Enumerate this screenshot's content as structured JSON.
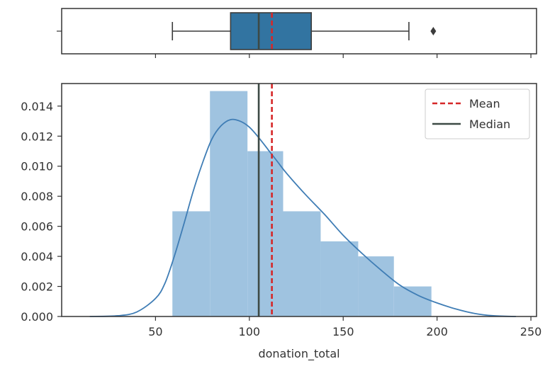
{
  "chart_data": {
    "type": "histogram+kde+boxplot",
    "xlabel": "donation_total",
    "x_ticks": [
      50,
      100,
      150,
      200,
      250
    ],
    "xlim": [
      0,
      253
    ],
    "y_ticks": [
      0.0,
      0.002,
      0.004,
      0.006,
      0.008,
      0.01,
      0.012,
      0.014
    ],
    "y_tick_labels": [
      "0.000",
      "0.002",
      "0.004",
      "0.006",
      "0.008",
      "0.010",
      "0.012",
      "0.014"
    ],
    "ylim": [
      0,
      0.0155
    ],
    "histogram": {
      "bin_edges": [
        59,
        79,
        99,
        118,
        138,
        158,
        177,
        197
      ],
      "densities": [
        0.007,
        0.015,
        0.011,
        0.007,
        0.005,
        0.004,
        0.002
      ]
    },
    "kde": {
      "x": [
        15,
        30,
        40,
        50,
        55,
        60,
        65,
        70,
        75,
        80,
        85,
        90,
        95,
        100,
        105,
        110,
        115,
        120,
        130,
        140,
        150,
        160,
        170,
        180,
        190,
        200,
        210,
        220,
        230,
        242
      ],
      "y": [
        0.0,
        5e-05,
        0.0003,
        0.0012,
        0.0022,
        0.004,
        0.0061,
        0.0083,
        0.0102,
        0.0118,
        0.0127,
        0.0131,
        0.013,
        0.0126,
        0.0119,
        0.0111,
        0.0103,
        0.0095,
        0.0081,
        0.0068,
        0.0054,
        0.0042,
        0.0031,
        0.0021,
        0.0014,
        0.0009,
        0.0005,
        0.0002,
        5e-05,
        0.0
      ]
    },
    "mean": 112,
    "median": 105,
    "boxplot": {
      "whisker_low": 59,
      "q1": 90,
      "median": 105,
      "q3": 133,
      "whisker_high": 185,
      "outliers": [
        198
      ]
    },
    "legend": {
      "placement": "top-right",
      "entries": [
        {
          "label": "Mean",
          "color": "#d62728",
          "style": "dashed"
        },
        {
          "label": "Median",
          "color": "#3d4a45",
          "style": "solid"
        }
      ]
    },
    "colors": {
      "histogram_fill": "#9fc3e0",
      "kde_line": "#3f7db5",
      "box_fill": "#3274a1",
      "box_edge": "#3c3c3c",
      "mean_line": "#d62728",
      "median_line": "#3d4a45",
      "axis": "#333333"
    }
  }
}
